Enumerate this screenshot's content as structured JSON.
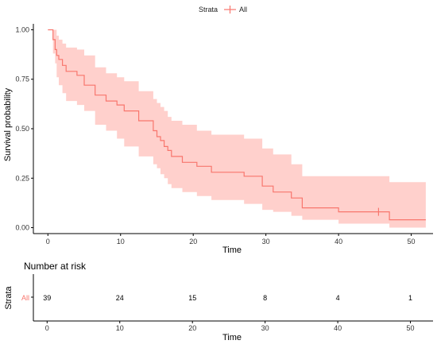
{
  "chart_data": [
    {
      "type": "line",
      "subtype": "kaplan-meier",
      "legend": {
        "title": "Strata",
        "entries": [
          "All"
        ],
        "placement": "top"
      },
      "xlabel": "Time",
      "ylabel": "Survival probability",
      "xlim": [
        -2,
        53
      ],
      "ylim": [
        -0.03,
        1.03
      ],
      "x_ticks": [
        0,
        10,
        20,
        30,
        40,
        50
      ],
      "y_ticks": [
        0.0,
        0.25,
        0.5,
        0.75,
        1.0
      ],
      "y_tick_labels": [
        "0.00",
        "0.25",
        "0.50",
        "0.75",
        "1.00"
      ],
      "grid": false,
      "colors": {
        "line": "#F8766D",
        "band": "#FFD0CC"
      },
      "series": [
        {
          "name": "All",
          "x": [
            0,
            0.7,
            1.0,
            1.2,
            1.5,
            2.0,
            2.5,
            4.0,
            5.0,
            6.5,
            8.0,
            9.5,
            10.5,
            12.5,
            14.5,
            15.0,
            15.5,
            16.0,
            16.5,
            17.0,
            18.5,
            20.5,
            22.5,
            27.0,
            29.5,
            31.0,
            33.5,
            35.0,
            40.0,
            47.0,
            52.0
          ],
          "survival": [
            1.0,
            0.95,
            0.9,
            0.87,
            0.85,
            0.82,
            0.79,
            0.77,
            0.72,
            0.67,
            0.64,
            0.62,
            0.59,
            0.54,
            0.49,
            0.46,
            0.44,
            0.41,
            0.39,
            0.36,
            0.33,
            0.31,
            0.28,
            0.26,
            0.21,
            0.18,
            0.15,
            0.1,
            0.08,
            0.04,
            0.04
          ],
          "lower": [
            1.0,
            0.88,
            0.83,
            0.76,
            0.72,
            0.68,
            0.64,
            0.62,
            0.59,
            0.52,
            0.49,
            0.45,
            0.41,
            0.36,
            0.32,
            0.3,
            0.27,
            0.25,
            0.22,
            0.2,
            0.18,
            0.16,
            0.14,
            0.12,
            0.09,
            0.08,
            0.06,
            0.04,
            0.02,
            0.0,
            0.0
          ],
          "upper": [
            1.0,
            1.0,
            1.0,
            0.97,
            0.95,
            0.93,
            0.91,
            0.9,
            0.87,
            0.81,
            0.78,
            0.76,
            0.74,
            0.69,
            0.65,
            0.63,
            0.61,
            0.59,
            0.56,
            0.54,
            0.52,
            0.49,
            0.47,
            0.45,
            0.4,
            0.37,
            0.32,
            0.26,
            0.26,
            0.23,
            0.23
          ],
          "censor_x": [
            45.5
          ],
          "censor_y": [
            0.08
          ]
        }
      ]
    },
    {
      "type": "table",
      "title": "Number at risk",
      "xlabel": "Time",
      "ylabel": "Strata",
      "row_labels": [
        "All"
      ],
      "x_ticks": [
        0,
        10,
        20,
        30,
        40,
        50
      ],
      "values": [
        39,
        24,
        15,
        8,
        4,
        1
      ]
    }
  ]
}
